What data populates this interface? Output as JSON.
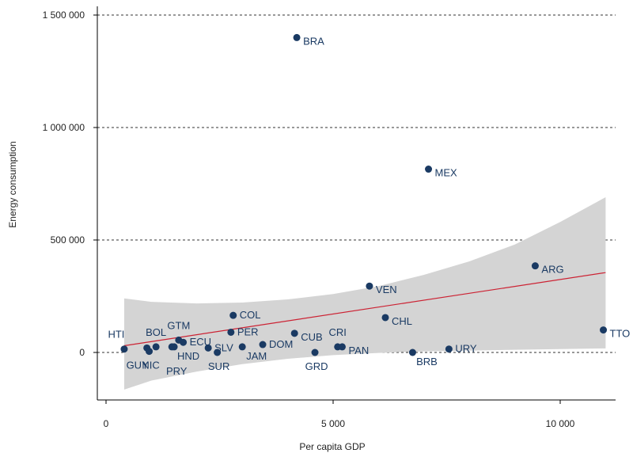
{
  "chart_data": {
    "type": "scatter",
    "title": "",
    "xlabel": "Per capita GDP",
    "ylabel": "Energy consumption",
    "xlim": [
      -400,
      11200
    ],
    "ylim": [
      -225000,
      1530000
    ],
    "xticks": [
      0,
      5000,
      10000
    ],
    "xtick_labels": [
      "0",
      "5 000",
      "10 000"
    ],
    "yticks": [
      0,
      500000,
      1000000,
      1500000
    ],
    "ytick_labels": [
      "0",
      "500 000",
      "1 000 000",
      "1 500 000"
    ],
    "grid": "horizontal dashed",
    "legend": "none",
    "colors": {
      "points": "#1a3a63",
      "labels": "#1a3a63",
      "fit_line": "#cc2233",
      "ci_band": "#d4d4d4"
    },
    "points": [
      {
        "label": "HTI",
        "x": 400,
        "y": 15000,
        "label_pos": "above-left"
      },
      {
        "label": "GUY",
        "x": 900,
        "y": 20000,
        "label_pos": "below-left"
      },
      {
        "label": "BOL",
        "x": 1100,
        "y": 25000,
        "label_pos": "above"
      },
      {
        "label": "NIC",
        "x": 950,
        "y": 5000,
        "label_pos": "below"
      },
      {
        "label": "PRY",
        "x": 1450,
        "y": 25000,
        "label_pos": "below2"
      },
      {
        "label": "HND",
        "x": 1500,
        "y": 25000,
        "label_pos": "below-right"
      },
      {
        "label": "GTM",
        "x": 1600,
        "y": 55000,
        "label_pos": "above"
      },
      {
        "label": "ECU",
        "x": 1700,
        "y": 45000,
        "label_pos": "right"
      },
      {
        "label": "SLV",
        "x": 2250,
        "y": 20000,
        "label_pos": "right"
      },
      {
        "label": "SUR",
        "x": 2450,
        "y": 0,
        "label_pos": "below"
      },
      {
        "label": "COL",
        "x": 2800,
        "y": 165000,
        "label_pos": "right"
      },
      {
        "label": "PER",
        "x": 2750,
        "y": 90000,
        "label_pos": "right"
      },
      {
        "label": "JAM",
        "x": 3000,
        "y": 25000,
        "label_pos": "below-right"
      },
      {
        "label": "DOM",
        "x": 3450,
        "y": 35000,
        "label_pos": "right"
      },
      {
        "label": "CUB",
        "x": 4150,
        "y": 85000,
        "label_pos": "right-low"
      },
      {
        "label": "BRA",
        "x": 4200,
        "y": 1400000,
        "label_pos": "right-low"
      },
      {
        "label": "GRD",
        "x": 4600,
        "y": 0,
        "label_pos": "below"
      },
      {
        "label": "CRI",
        "x": 5100,
        "y": 25000,
        "label_pos": "above"
      },
      {
        "label": "PAN",
        "x": 5200,
        "y": 25000,
        "label_pos": "right-low"
      },
      {
        "label": "VEN",
        "x": 5800,
        "y": 295000,
        "label_pos": "right-low"
      },
      {
        "label": "CHL",
        "x": 6150,
        "y": 155000,
        "label_pos": "right-low"
      },
      {
        "label": "BRB",
        "x": 6750,
        "y": 0,
        "label_pos": "below-right"
      },
      {
        "label": "MEX",
        "x": 7100,
        "y": 815000,
        "label_pos": "right-low"
      },
      {
        "label": "URY",
        "x": 7550,
        "y": 15000,
        "label_pos": "right"
      },
      {
        "label": "ARG",
        "x": 9450,
        "y": 385000,
        "label_pos": "right-low"
      },
      {
        "label": "TTO",
        "x": 10950,
        "y": 100000,
        "label_pos": "right-low"
      }
    ],
    "fit_line": {
      "x": [
        400,
        11000
      ],
      "y": [
        30000,
        355000
      ]
    },
    "ci_band": {
      "x": [
        400,
        1000,
        2000,
        3000,
        4000,
        5000,
        6000,
        7000,
        8000,
        9000,
        10000,
        11000
      ],
      "upper": [
        240000,
        225000,
        218000,
        222000,
        236000,
        260000,
        295000,
        345000,
        405000,
        480000,
        580000,
        690000
      ],
      "lower": [
        -165000,
        -125000,
        -85000,
        -52000,
        -28000,
        -12000,
        -2000,
        5000,
        8000,
        12000,
        15000,
        18000
      ]
    }
  }
}
